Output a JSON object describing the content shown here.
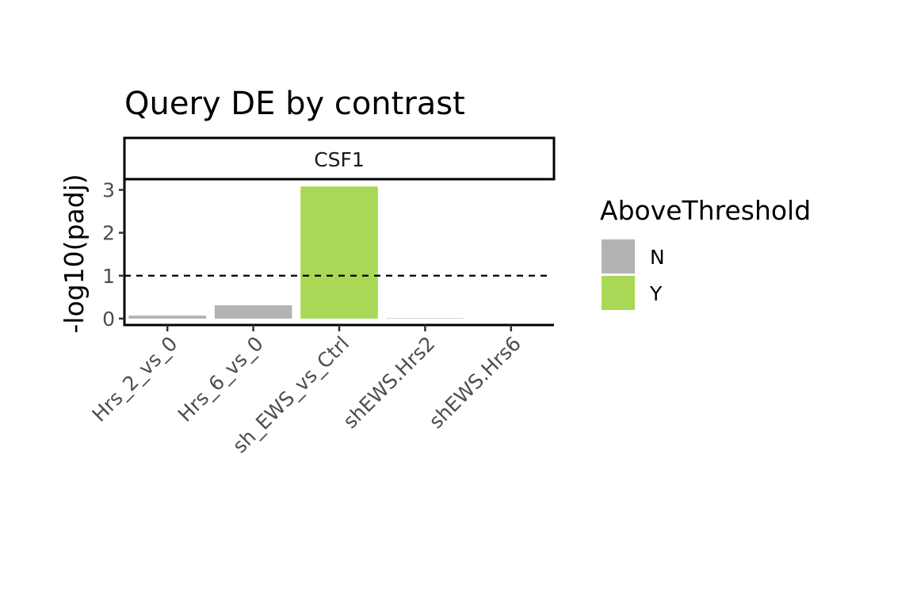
{
  "chart_data": {
    "type": "bar",
    "title": "Query DE by contrast",
    "facet_label": "CSF1",
    "xlabel": "",
    "ylabel": "-log10(padj)",
    "categories": [
      "Hrs_2_vs_0",
      "Hrs_6_vs_0",
      "sh_EWS_vs_Ctrl",
      "shEWS.Hrs2",
      "shEWS.Hrs6"
    ],
    "values": [
      0.07,
      0.31,
      3.08,
      0.01,
      0.0
    ],
    "above_threshold": [
      "N",
      "N",
      "Y",
      "N",
      "N"
    ],
    "threshold": 1,
    "ylim": [
      -0.15,
      3.25
    ],
    "yticks": [
      0,
      1,
      2,
      3
    ],
    "legend": {
      "title": "AboveThreshold",
      "placement": "right",
      "entries": [
        {
          "key": "N",
          "label": "N",
          "color": "#b3b3b3"
        },
        {
          "key": "Y",
          "label": "Y",
          "color": "#a8d855"
        }
      ]
    },
    "grid": false
  }
}
